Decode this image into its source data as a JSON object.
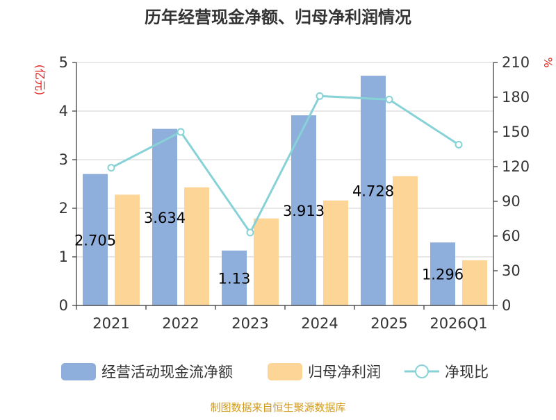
{
  "title": "历年经营现金净额、归母净利润情况",
  "source": "制图数据来自恒生聚源数据库",
  "chart_data": {
    "type": "bar",
    "categories": [
      "2021",
      "2022",
      "2023",
      "2024",
      "2025",
      "2026Q1"
    ],
    "y_left": {
      "label": "(亿元)",
      "ylim": [
        0,
        5
      ],
      "ticks": [
        0,
        1,
        2,
        3,
        4,
        5
      ]
    },
    "y_right": {
      "label": "%",
      "ylim": [
        0,
        210
      ],
      "ticks": [
        0,
        30,
        60,
        90,
        120,
        150,
        180,
        210
      ]
    },
    "grid": true,
    "legend_position": "bottom",
    "series": [
      {
        "name": "经营活动现金流净额",
        "type": "bar",
        "axis": "left",
        "color": "#8eaedb",
        "values": [
          2.705,
          3.634,
          1.13,
          3.913,
          4.728,
          1.296
        ],
        "data_labels": [
          "2.705",
          "3.634",
          "1.13",
          "3.913",
          "4.728",
          "1.296"
        ]
      },
      {
        "name": "归母净利润",
        "type": "bar",
        "axis": "left",
        "color": "#fdd597",
        "values": [
          2.28,
          2.43,
          1.79,
          2.16,
          2.66,
          0.93
        ]
      },
      {
        "name": "净现比",
        "type": "line",
        "axis": "right",
        "color": "#86d2d6",
        "values": [
          119,
          150,
          63,
          181,
          178,
          139
        ]
      }
    ]
  }
}
